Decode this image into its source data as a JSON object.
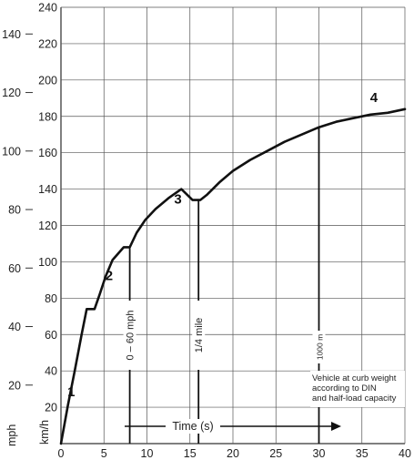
{
  "chart_data": {
    "type": "line",
    "xlabel": "Time (s)",
    "x_ticks": [
      "0",
      "5",
      "10",
      "15",
      "20",
      "25",
      "30",
      "35",
      "40"
    ],
    "y_kmh_ticks": [
      "20",
      "40",
      "60",
      "80",
      "100",
      "120",
      "140",
      "160",
      "180",
      "200",
      "220",
      "240"
    ],
    "y_mph_ticks": [
      "20",
      "40",
      "60",
      "80",
      "100",
      "120",
      "140"
    ],
    "unit_kmh": "km/h",
    "unit_mph": "mph",
    "xlim": [
      0,
      40
    ],
    "ylim_kmh": [
      0,
      240
    ],
    "grid": true,
    "series": [
      {
        "x": [
          0,
          0.8,
          1.6,
          2.4,
          3.0,
          3.3,
          3.9,
          4.5,
          5.2,
          6.0,
          7.3,
          8.0,
          8.8,
          9.8,
          11.0,
          12.5,
          14.0,
          15.3,
          16.2,
          17.0,
          18.5,
          20.0,
          22.0,
          24.0,
          26.0,
          28.0,
          30.0,
          32.0,
          34.0,
          36.0,
          38.0,
          40.0
        ],
        "y": [
          0,
          21,
          40,
          60,
          74,
          74,
          74,
          82,
          92,
          101,
          108,
          108,
          116,
          123,
          129,
          135,
          140,
          134,
          134,
          137,
          144,
          150,
          156,
          161,
          166,
          170,
          174,
          177,
          179,
          181,
          182,
          184
        ]
      }
    ],
    "phase_labels": [
      {
        "text": "1",
        "x": 1.2,
        "y": 26
      },
      {
        "text": "2",
        "x": 5.6,
        "y": 90
      },
      {
        "text": "3",
        "x": 13.6,
        "y": 132
      },
      {
        "text": "4",
        "x": 36.4,
        "y": 188
      }
    ],
    "markers": [
      {
        "text": "0 – 60 mph",
        "x": 8.0
      },
      {
        "text": "1/4 mile",
        "x": 16.0
      },
      {
        "text": "1000 m",
        "x": 30.0
      }
    ],
    "note": [
      "Vehicle at curb weight",
      "according to DIN",
      "and half-load capacity"
    ]
  }
}
